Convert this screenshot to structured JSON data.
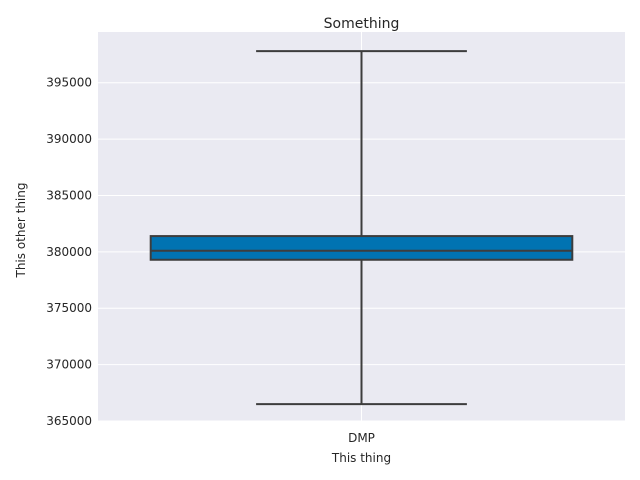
{
  "chart_data": {
    "type": "box",
    "title": "Something",
    "xlabel": "This thing",
    "ylabel": "This other thing",
    "categories": [
      "DMP"
    ],
    "boxes": [
      {
        "category": "DMP",
        "min": 366500,
        "q1": 379300,
        "median": 380100,
        "q3": 381400,
        "max": 397800
      }
    ],
    "ylim": [
      365000,
      399500
    ],
    "yticks": [
      365000,
      370000,
      375000,
      380000,
      385000,
      390000,
      395000
    ],
    "grid": true,
    "colors": {
      "background": "#eaeaf2",
      "grid": "#ffffff",
      "box_fill": "#0173b2",
      "line": "#3d3d3d"
    }
  }
}
